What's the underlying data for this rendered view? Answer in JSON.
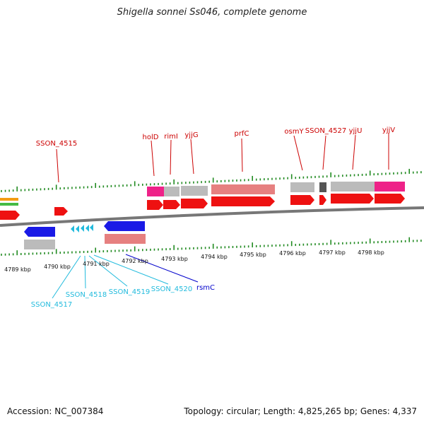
{
  "title": "Shigella sonnei Ss046, complete genome",
  "footer": {
    "accession": "Accession: NC_007384",
    "summary": "Topology: circular; Length: 4,825,265 bp; Genes: 4,337"
  },
  "colors": {
    "forward_cds": "#ee1111",
    "reverse_cds": "#1a1ae6",
    "gene_gray": "#bbbbbb",
    "gene_pink": "#ee2288",
    "gene_light_red": "#e68080",
    "tick_green": "#228b22",
    "label_red": "#cc0000",
    "label_cyan": "#22bbdd",
    "label_blue": "#0000cc"
  },
  "kbp_labels": [
    "4789 kbp",
    "4790 kbp",
    "4791 kbp",
    "4792 kbp",
    "4793 kbp",
    "4794 kbp",
    "4795 kbp",
    "4796 kbp",
    "4797 kbp",
    "4798 kbp"
  ],
  "top_gene_labels": [
    "SSON_4515",
    "holD",
    "rimI",
    "yjjG",
    "prfC",
    "osmY",
    "SSON_4527",
    "yjjU",
    "yjjV"
  ],
  "bottom_gene_labels": [
    {
      "name": "SSON_4517",
      "color": "#22bbdd"
    },
    {
      "name": "SSON_4518",
      "color": "#22bbdd"
    },
    {
      "name": "SSON_4519",
      "color": "#22bbdd"
    },
    {
      "name": "SSON_4520",
      "color": "#22bbdd"
    },
    {
      "name": "rsmC",
      "color": "#0000cc"
    }
  ]
}
